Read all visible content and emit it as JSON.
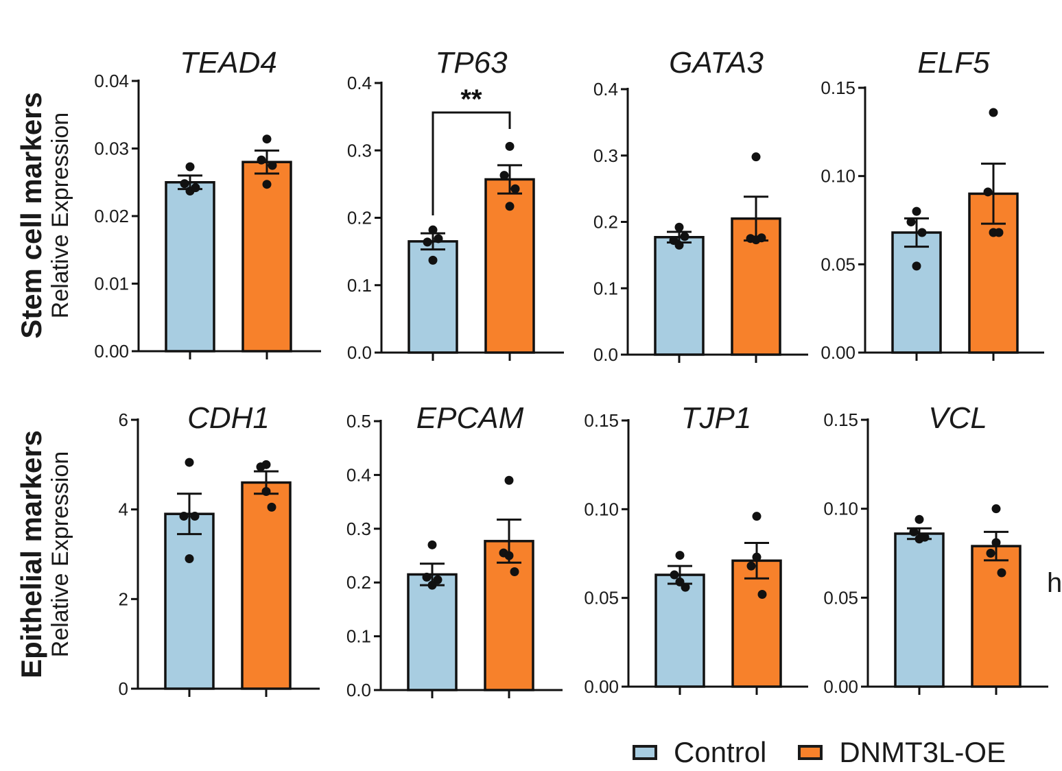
{
  "colors": {
    "control": "#a8cde1",
    "oe": "#f7812b",
    "ink": "#111111"
  },
  "row_labels": [
    {
      "title": "Stem cell markers",
      "subtitle": "Relative Expression"
    },
    {
      "title": "Epithelial markers",
      "subtitle": "Relative Expression"
    }
  ],
  "legend": {
    "control": "Control",
    "oe": "DNMT3L-OE"
  },
  "edge_text": "h",
  "chart_data": [
    {
      "type": "bar",
      "title": "TEAD4",
      "ylim": [
        0,
        0.04
      ],
      "yticks": [
        0,
        0.01,
        0.02,
        0.03,
        0.04
      ],
      "ytick_labels": [
        "0.00",
        "0.01",
        "0.02",
        "0.03",
        "0.04"
      ],
      "categories": [
        "Control",
        "DNMT3L-OE"
      ],
      "values": [
        0.025,
        0.028
      ],
      "errors": [
        0.001,
        0.0017
      ],
      "points": [
        [
          0.0273,
          0.0248,
          0.0237,
          0.0242
        ],
        [
          0.0314,
          0.0283,
          0.0247,
          0.0275
        ]
      ]
    },
    {
      "type": "bar",
      "title": "TP63",
      "ylim": [
        0,
        0.4
      ],
      "yticks": [
        0,
        0.1,
        0.2,
        0.3,
        0.4
      ],
      "ytick_labels": [
        "0.0",
        "0.1",
        "0.2",
        "0.3",
        "0.4"
      ],
      "categories": [
        "Control",
        "DNMT3L-OE"
      ],
      "values": [
        0.165,
        0.257
      ],
      "errors": [
        0.012,
        0.021
      ],
      "points": [
        [
          0.182,
          0.164,
          0.137,
          0.169
        ],
        [
          0.306,
          0.263,
          0.217,
          0.243
        ]
      ],
      "significance": "**"
    },
    {
      "type": "bar",
      "title": "GATA3",
      "ylim": [
        0,
        0.4
      ],
      "yticks": [
        0,
        0.1,
        0.2,
        0.3,
        0.4
      ],
      "ytick_labels": [
        "0.0",
        "0.1",
        "0.2",
        "0.3",
        "0.4"
      ],
      "categories": [
        "Control",
        "DNMT3L-OE"
      ],
      "values": [
        0.177,
        0.205
      ],
      "errors": [
        0.008,
        0.033
      ],
      "points": [
        [
          0.192,
          0.172,
          0.165,
          0.178
        ],
        [
          0.298,
          0.175,
          0.173,
          0.176
        ]
      ]
    },
    {
      "type": "bar",
      "title": "ELF5",
      "ylim": [
        0,
        0.15
      ],
      "yticks": [
        0,
        0.05,
        0.1,
        0.15
      ],
      "ytick_labels": [
        "0.00",
        "0.05",
        "0.10",
        "0.15"
      ],
      "categories": [
        "Control",
        "DNMT3L-OE"
      ],
      "values": [
        0.068,
        0.09
      ],
      "errors": [
        0.008,
        0.017
      ],
      "points": [
        [
          0.08,
          0.074,
          0.049,
          0.068
        ],
        [
          0.136,
          0.091,
          0.068,
          0.068
        ]
      ]
    },
    {
      "type": "bar",
      "title": "CDH1",
      "ylim": [
        0,
        6
      ],
      "yticks": [
        0,
        2,
        4,
        6
      ],
      "ytick_labels": [
        "0",
        "2",
        "4",
        "6"
      ],
      "categories": [
        "Control",
        "DNMT3L-OE"
      ],
      "values": [
        3.9,
        4.6
      ],
      "errors": [
        0.45,
        0.25
      ],
      "points": [
        [
          5.05,
          3.85,
          2.9,
          3.85
        ],
        [
          5.0,
          4.95,
          4.4,
          4.05
        ]
      ]
    },
    {
      "type": "bar",
      "title": "EPCAM",
      "ylim": [
        0,
        0.5
      ],
      "yticks": [
        0,
        0.1,
        0.2,
        0.3,
        0.4,
        0.5
      ],
      "ytick_labels": [
        "0.0",
        "0.1",
        "0.2",
        "0.3",
        "0.4",
        "0.5"
      ],
      "categories": [
        "Control",
        "DNMT3L-OE"
      ],
      "values": [
        0.215,
        0.277
      ],
      "errors": [
        0.02,
        0.04
      ],
      "points": [
        [
          0.27,
          0.21,
          0.195,
          0.205
        ],
        [
          0.39,
          0.255,
          0.25,
          0.22
        ]
      ]
    },
    {
      "type": "bar",
      "title": "TJP1",
      "ylim": [
        0,
        0.15
      ],
      "yticks": [
        0,
        0.05,
        0.1,
        0.15
      ],
      "ytick_labels": [
        "0.00",
        "0.05",
        "0.10",
        "0.15"
      ],
      "categories": [
        "Control",
        "DNMT3L-OE"
      ],
      "values": [
        0.063,
        0.071
      ],
      "errors": [
        0.005,
        0.01
      ],
      "points": [
        [
          0.074,
          0.063,
          0.059,
          0.056
        ],
        [
          0.096,
          0.068,
          0.073,
          0.052
        ]
      ]
    },
    {
      "type": "bar",
      "title": "VCL",
      "ylim": [
        0,
        0.15
      ],
      "yticks": [
        0,
        0.05,
        0.1,
        0.15
      ],
      "ytick_labels": [
        "0.00",
        "0.05",
        "0.10",
        "0.15"
      ],
      "categories": [
        "Control",
        "DNMT3L-OE"
      ],
      "values": [
        0.086,
        0.079
      ],
      "errors": [
        0.003,
        0.008
      ],
      "points": [
        [
          0.094,
          0.087,
          0.083,
          0.084
        ],
        [
          0.1,
          0.075,
          0.081,
          0.064
        ]
      ]
    }
  ]
}
